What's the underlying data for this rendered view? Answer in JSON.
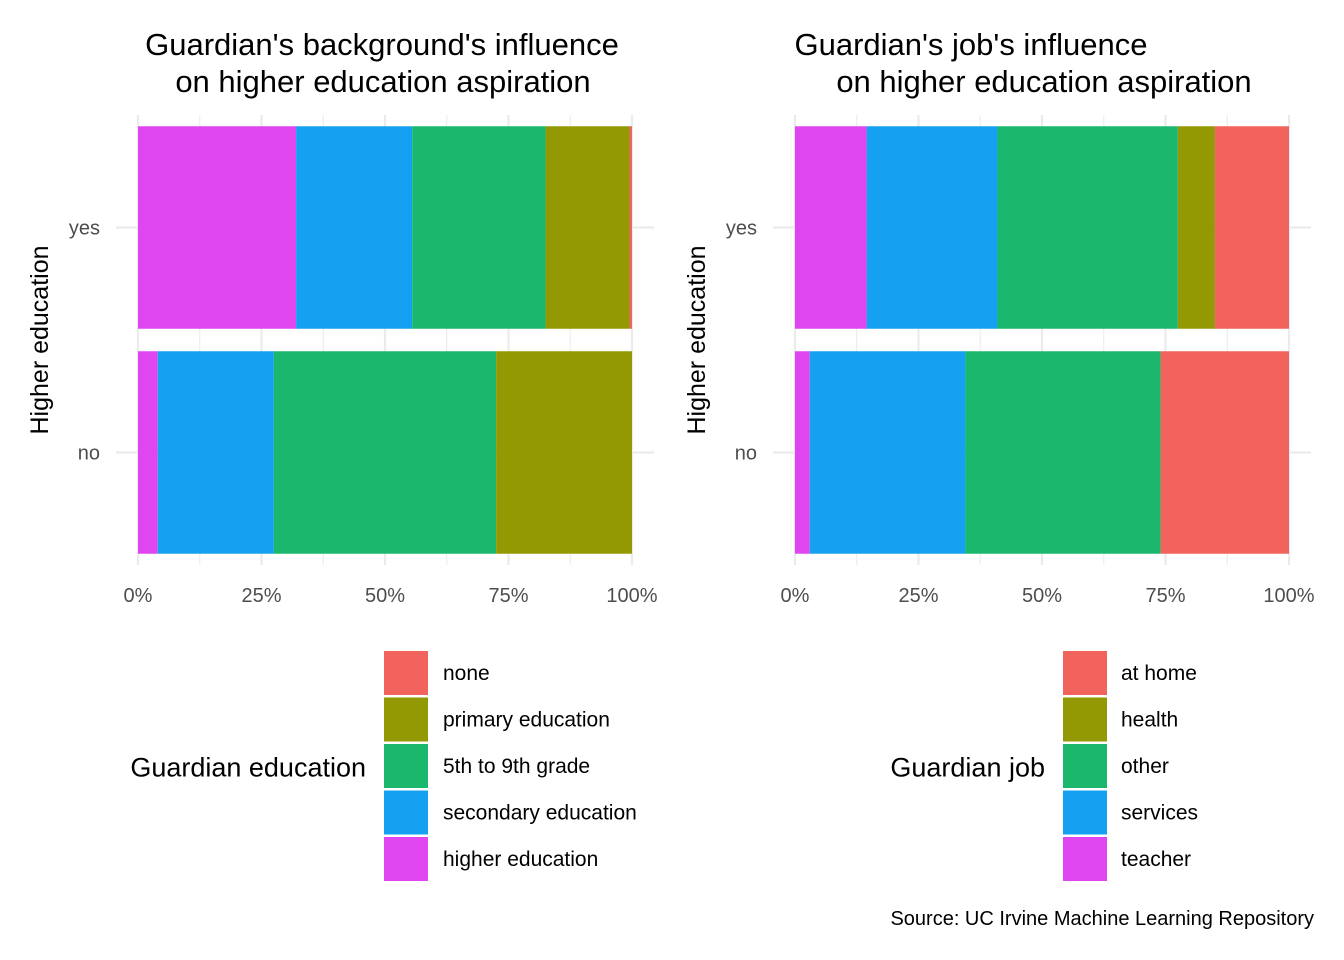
{
  "caption": "Source: UC Irvine Machine Learning Repository",
  "chart_data": [
    {
      "type": "bar",
      "orientation": "horizontal",
      "stacked": "percent",
      "title_lines": [
        "Guardian's background's influence",
        "on higher education aspiration"
      ],
      "xlabel": "",
      "ylabel": "Higher education",
      "categories": [
        "no",
        "yes"
      ],
      "x_ticks": [
        "0%",
        "25%",
        "50%",
        "75%",
        "100%"
      ],
      "xlim": [
        0,
        100
      ],
      "legend_title": "Guardian education",
      "legend_position": "bottom",
      "series": [
        {
          "name": "higher education",
          "color": "#E046F0",
          "values": [
            4,
            32
          ]
        },
        {
          "name": "secondary education",
          "color": "#16A0F2",
          "values": [
            23.5,
            23.5
          ]
        },
        {
          "name": "5th to 9th grade",
          "color": "#1BB76D",
          "values": [
            45,
            27
          ]
        },
        {
          "name": "primary education",
          "color": "#939902",
          "values": [
            27.5,
            17
          ]
        },
        {
          "name": "none",
          "color": "#F2635E",
          "values": [
            0,
            0.5
          ]
        }
      ],
      "legend_order": [
        "none",
        "primary education",
        "5th to 9th grade",
        "secondary education",
        "higher education"
      ]
    },
    {
      "type": "bar",
      "orientation": "horizontal",
      "stacked": "percent",
      "title_lines": [
        "Guardian's job's influence",
        "on higher education aspiration"
      ],
      "xlabel": "",
      "ylabel": "Higher education",
      "categories": [
        "no",
        "yes"
      ],
      "x_ticks": [
        "0%",
        "25%",
        "50%",
        "75%",
        "100%"
      ],
      "xlim": [
        0,
        100
      ],
      "legend_title": "Guardian job",
      "legend_position": "bottom",
      "series": [
        {
          "name": "teacher",
          "color": "#E046F0",
          "values": [
            3,
            14.5
          ]
        },
        {
          "name": "services",
          "color": "#16A0F2",
          "values": [
            31.5,
            26.5
          ]
        },
        {
          "name": "other",
          "color": "#1BB76D",
          "values": [
            39.5,
            36.5
          ]
        },
        {
          "name": "health",
          "color": "#939902",
          "values": [
            0,
            7.5
          ]
        },
        {
          "name": "at home",
          "color": "#F2635E",
          "values": [
            26,
            15
          ]
        }
      ],
      "legend_order": [
        "at home",
        "health",
        "other",
        "services",
        "teacher"
      ]
    }
  ]
}
